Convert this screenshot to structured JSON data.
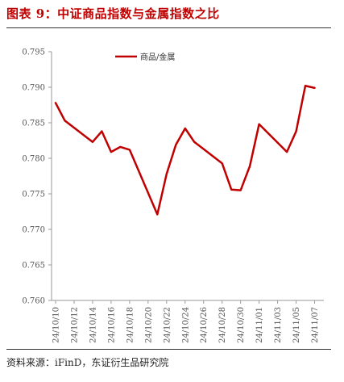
{
  "header": {
    "title": "图表 9：中证商品指数与金属指数之比"
  },
  "footer": {
    "source": "资料来源：iFinD，东证衍生品研究院"
  },
  "colors": {
    "accent": "#c00000",
    "axis": "#999999",
    "text": "#555555"
  },
  "chart_data": {
    "type": "line",
    "series": [
      {
        "name": "商品/金属",
        "color": "#c00000",
        "x": [
          "24/10/10",
          "24/10/11",
          "24/10/14",
          "24/10/15",
          "24/10/16",
          "24/10/17",
          "24/10/18",
          "24/10/21",
          "24/10/22",
          "24/10/23",
          "24/10/24",
          "24/10/25",
          "24/10/28",
          "24/10/29",
          "24/10/30",
          "24/10/31",
          "24/11/01",
          "24/11/04",
          "24/11/05",
          "24/11/06",
          "24/11/07"
        ],
        "values": [
          0.7878,
          0.7853,
          0.7823,
          0.7838,
          0.7809,
          0.7816,
          0.7812,
          0.7721,
          0.7778,
          0.7819,
          0.7842,
          0.7823,
          0.7793,
          0.7756,
          0.7755,
          0.7789,
          0.7848,
          0.7809,
          0.7838,
          0.7902,
          0.7899
        ]
      }
    ],
    "xticklabels": [
      "24/10/10",
      "24/10/12",
      "24/10/14",
      "24/10/16",
      "24/10/18",
      "24/10/20",
      "24/10/22",
      "24/10/24",
      "24/10/26",
      "24/10/28",
      "24/10/30",
      "24/11/01",
      "24/11/03",
      "24/11/05",
      "24/11/07"
    ],
    "xtick_days": [
      0,
      2,
      4,
      6,
      8,
      10,
      12,
      14,
      16,
      18,
      20,
      22,
      24,
      26,
      28
    ],
    "x_days": [
      0,
      1,
      4,
      5,
      6,
      7,
      8,
      11,
      12,
      13,
      14,
      15,
      18,
      19,
      20,
      21,
      22,
      25,
      26,
      27,
      28
    ],
    "ylim": [
      0.76,
      0.795
    ],
    "yticks": [
      "0.795",
      "0.790",
      "0.785",
      "0.780",
      "0.775",
      "0.770",
      "0.765",
      "0.760"
    ],
    "legend_position": "top-center",
    "grid": false
  }
}
